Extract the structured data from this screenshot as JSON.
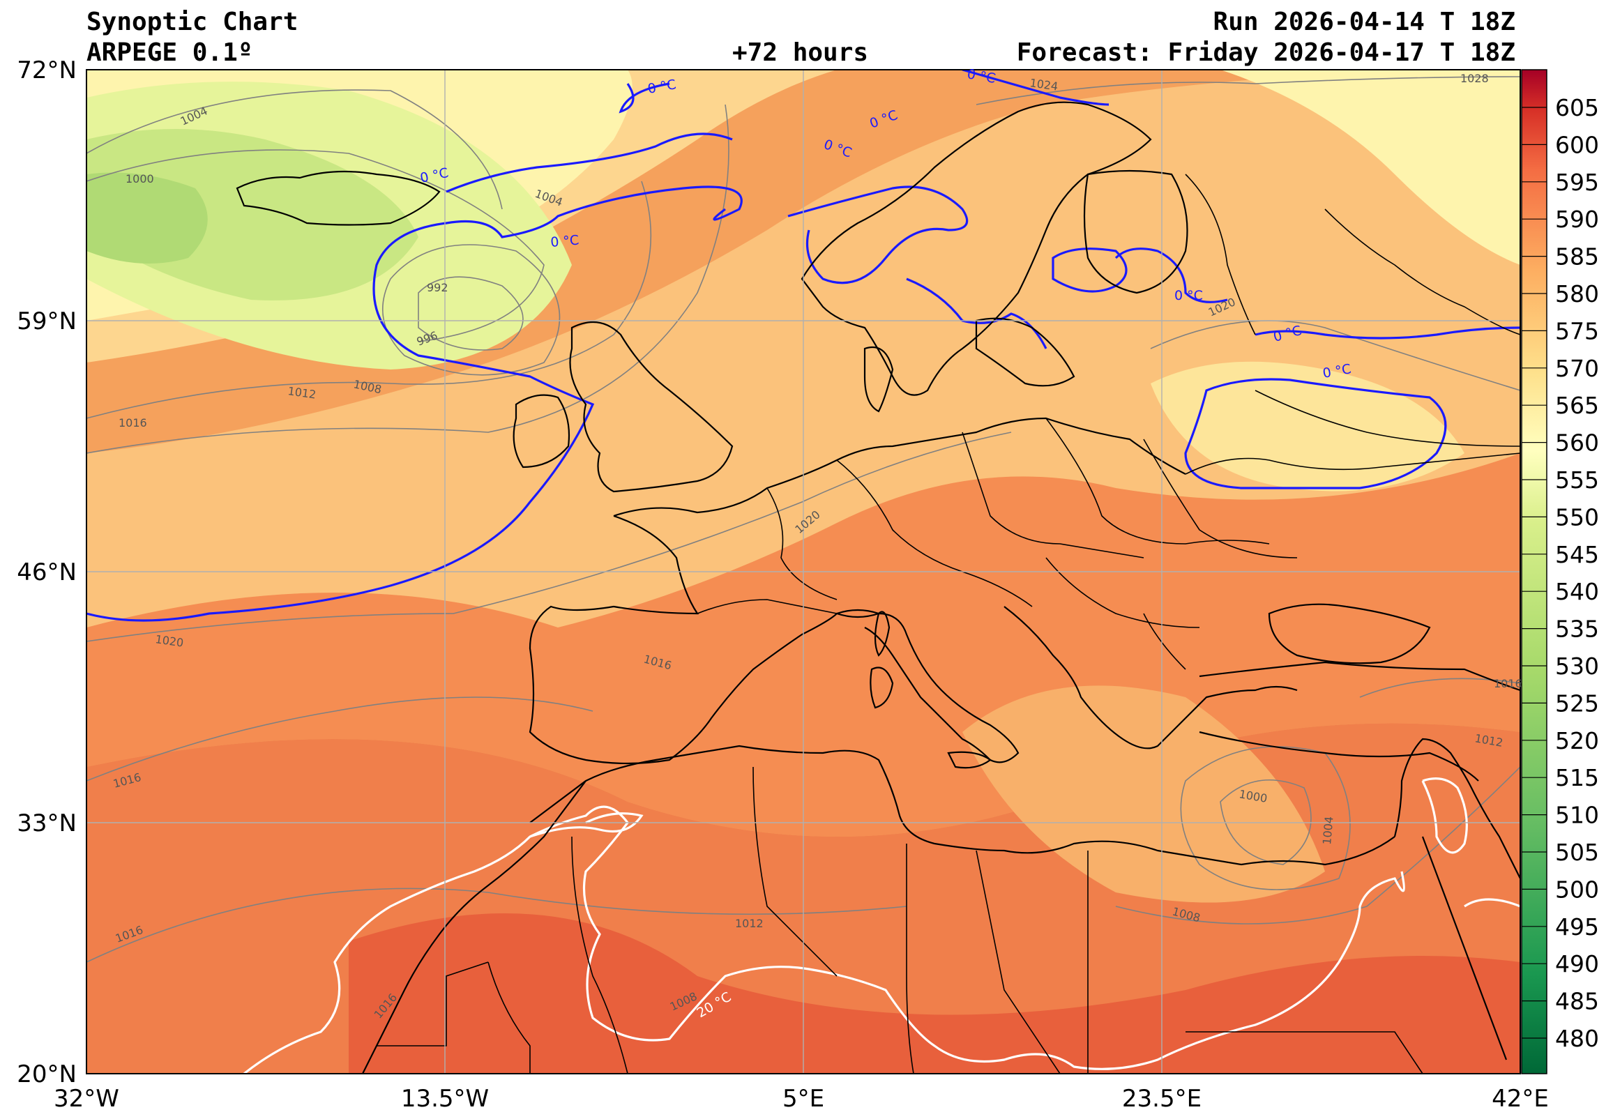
{
  "header": {
    "title": "Synoptic Chart",
    "model": "ARPEGE 0.1º",
    "lead": "+72 hours",
    "run": "Run 2026-04-14 T 18Z",
    "forecast": "Forecast: Friday 2026-04-17 T 18Z"
  },
  "axes": {
    "lat_labels": [
      "72°N",
      "59°N",
      "46°N",
      "33°N",
      "20°N"
    ],
    "lon_labels": [
      "32°W",
      "13.5°W",
      "5°E",
      "23.5°E",
      "42°E"
    ]
  },
  "colorbar": {
    "ticks": [
      "605",
      "600",
      "595",
      "590",
      "585",
      "580",
      "575",
      "570",
      "565",
      "560",
      "555",
      "550",
      "545",
      "540",
      "535",
      "530",
      "525",
      "520",
      "515",
      "510",
      "505",
      "500",
      "495",
      "490",
      "485",
      "480"
    ]
  },
  "isobars": {
    "labels": [
      "1004",
      "1000",
      "1004",
      "992",
      "996",
      "1008",
      "1012",
      "1016",
      "1020",
      "1016",
      "1016",
      "1024",
      "1028",
      "1020",
      "1020",
      "1016",
      "1016",
      "1012",
      "1000",
      "1004",
      "1008",
      "1012",
      "1008",
      "1016"
    ]
  },
  "isotherms": {
    "zero_label": "0 °C",
    "twenty_label": "20 °C"
  },
  "colors": {
    "isotherm_0": "#1a1aff",
    "isotherm_20": "#ffffff",
    "isobar": "#808080",
    "coast": "#000000",
    "grid": "#b0b0b0"
  }
}
